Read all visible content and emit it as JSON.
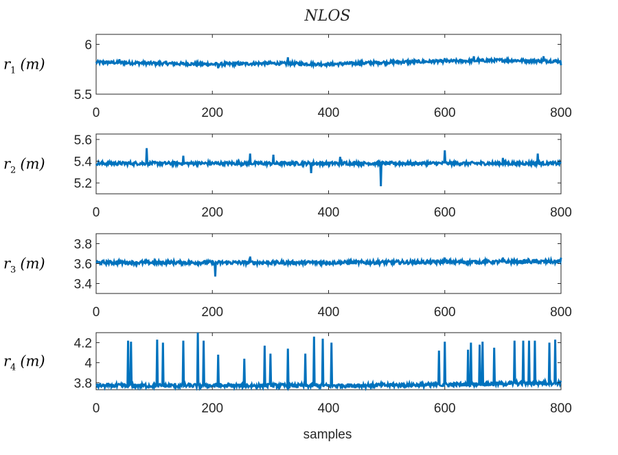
{
  "chart_data": {
    "type": "line",
    "title": "NLOS",
    "xlabel": "samples",
    "series_color": "#0072BD",
    "panels": [
      {
        "name": "r1",
        "ylabel": {
          "var": "r",
          "sub": "1",
          "unit": "(m)"
        },
        "xlim": [
          0,
          800
        ],
        "ylim": [
          5.5,
          6.1
        ],
        "xticks": [
          "0",
          "200",
          "400",
          "600",
          "800"
        ],
        "yticks": [
          {
            "value": 5.5,
            "label": "5.5"
          },
          {
            "value": 6,
            "label": "6"
          }
        ],
        "trend": [
          [
            0,
            5.82
          ],
          [
            100,
            5.81
          ],
          [
            200,
            5.8
          ],
          [
            300,
            5.81
          ],
          [
            400,
            5.8
          ],
          [
            500,
            5.82
          ],
          [
            600,
            5.83
          ],
          [
            700,
            5.84
          ],
          [
            800,
            5.83
          ]
        ],
        "noise": 0.015,
        "spikes": [
          [
            40,
            5.85
          ],
          [
            210,
            5.76
          ],
          [
            330,
            5.87
          ],
          [
            600,
            5.86
          ],
          [
            650,
            5.88
          ],
          [
            770,
            5.88
          ],
          [
            800,
            5.79
          ]
        ]
      },
      {
        "name": "r2",
        "ylabel": {
          "var": "r",
          "sub": "2",
          "unit": "(m)"
        },
        "xlim": [
          0,
          800
        ],
        "ylim": [
          5.1,
          5.65
        ],
        "xticks": [
          "0",
          "200",
          "400",
          "600",
          "800"
        ],
        "yticks": [
          {
            "value": 5.2,
            "label": "5.2"
          },
          {
            "value": 5.4,
            "label": "5.4"
          },
          {
            "value": 5.6,
            "label": "5.6"
          }
        ],
        "trend": [
          [
            0,
            5.38
          ],
          [
            400,
            5.38
          ],
          [
            800,
            5.38
          ]
        ],
        "noise": 0.015,
        "spikes": [
          [
            87,
            5.52
          ],
          [
            150,
            5.45
          ],
          [
            265,
            5.47
          ],
          [
            305,
            5.46
          ],
          [
            370,
            5.29
          ],
          [
            420,
            5.44
          ],
          [
            490,
            5.17
          ],
          [
            600,
            5.5
          ],
          [
            700,
            5.43
          ],
          [
            760,
            5.47
          ]
        ]
      },
      {
        "name": "r3",
        "ylabel": {
          "var": "r",
          "sub": "3",
          "unit": "(m)"
        },
        "xlim": [
          0,
          800
        ],
        "ylim": [
          3.3,
          3.9
        ],
        "xticks": [
          "0",
          "200",
          "400",
          "600",
          "800"
        ],
        "yticks": [
          {
            "value": 3.4,
            "label": "3.4"
          },
          {
            "value": 3.6,
            "label": "3.6"
          },
          {
            "value": 3.8,
            "label": "3.8"
          }
        ],
        "trend": [
          [
            0,
            3.61
          ],
          [
            400,
            3.61
          ],
          [
            800,
            3.62
          ]
        ],
        "noise": 0.018,
        "spikes": [
          [
            205,
            3.47
          ],
          [
            265,
            3.67
          ],
          [
            600,
            3.66
          ],
          [
            700,
            3.66
          ],
          [
            800,
            3.66
          ]
        ]
      },
      {
        "name": "r4",
        "ylabel": {
          "var": "r",
          "sub": "4",
          "unit": "(m)"
        },
        "xlim": [
          0,
          800
        ],
        "ylim": [
          3.73,
          4.3
        ],
        "xticks": [
          "0",
          "200",
          "400",
          "600",
          "800"
        ],
        "yticks": [
          {
            "value": 3.8,
            "label": "3.8"
          },
          {
            "value": 4,
            "label": "4"
          },
          {
            "value": 4.2,
            "label": "4.2"
          }
        ],
        "trend": [
          [
            0,
            3.77
          ],
          [
            400,
            3.77
          ],
          [
            600,
            3.78
          ],
          [
            800,
            3.8
          ]
        ],
        "noise": 0.02,
        "spikes": [
          [
            55,
            4.22
          ],
          [
            60,
            4.21
          ],
          [
            105,
            4.23
          ],
          [
            115,
            4.2
          ],
          [
            150,
            4.22
          ],
          [
            175,
            4.3
          ],
          [
            185,
            4.22
          ],
          [
            210,
            4.08
          ],
          [
            255,
            4.04
          ],
          [
            290,
            4.17
          ],
          [
            300,
            4.09
          ],
          [
            330,
            4.14
          ],
          [
            360,
            4.09
          ],
          [
            375,
            4.26
          ],
          [
            390,
            4.24
          ],
          [
            405,
            4.2
          ],
          [
            590,
            4.12
          ],
          [
            600,
            4.21
          ],
          [
            640,
            4.13
          ],
          [
            645,
            4.2
          ],
          [
            660,
            4.18
          ],
          [
            665,
            4.21
          ],
          [
            685,
            4.15
          ],
          [
            720,
            4.22
          ],
          [
            735,
            4.22
          ],
          [
            745,
            4.22
          ],
          [
            755,
            4.22
          ],
          [
            780,
            4.2
          ],
          [
            790,
            4.23
          ]
        ]
      }
    ]
  }
}
